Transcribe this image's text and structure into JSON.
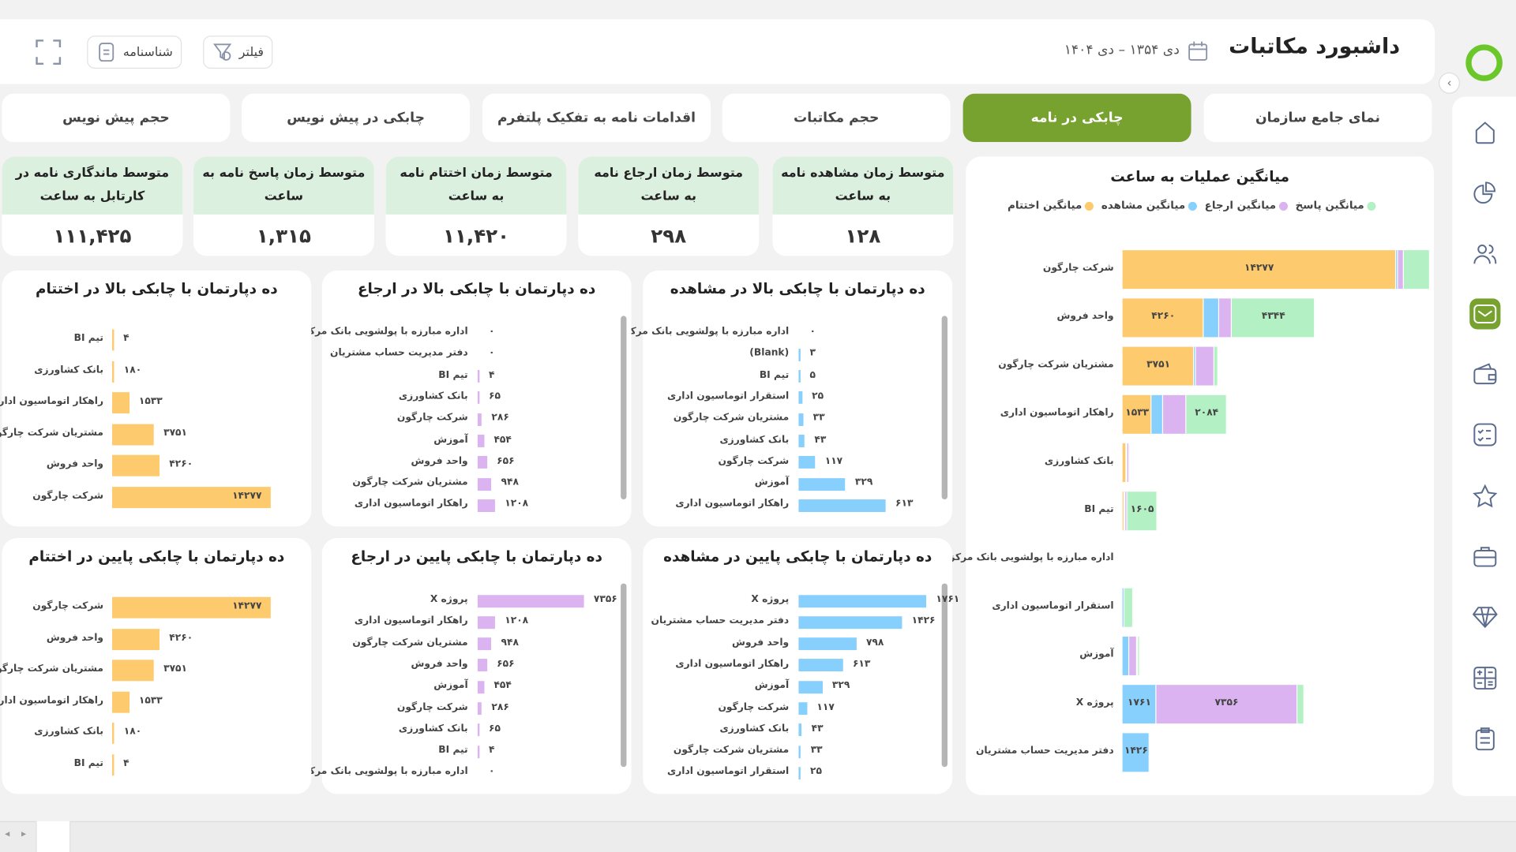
{
  "header": {
    "title": "داشبورد مکاتبات",
    "date_range": "دی ۱۳۵۴ – دی ۱۴۰۴",
    "filter_label": "فیلتر",
    "profile_label": "شناسنامه"
  },
  "tabs": [
    {
      "label": "نمای جامع سازمان",
      "active": false
    },
    {
      "label": "چابکی در نامه",
      "active": true
    },
    {
      "label": "حجم مکاتبات",
      "active": false
    },
    {
      "label": "اقدامات نامه به تفکیک پلتفرم",
      "active": false
    },
    {
      "label": "چابکی در پیش نویس",
      "active": false
    },
    {
      "label": "حجم پیش نویس",
      "active": false
    }
  ],
  "kpis": [
    {
      "title": "متوسط زمان مشاهده نامه به ساعت",
      "value": "۱۲۸"
    },
    {
      "title": "متوسط زمان ارجاع نامه به ساعت",
      "value": "۲۹۸"
    },
    {
      "title": "متوسط زمان اختتام نامه به ساعت",
      "value": "۱۱,۴۲۰"
    },
    {
      "title": "متوسط زمان پاسخ نامه به ساعت",
      "value": "۱,۳۱۵"
    },
    {
      "title": "متوسط ماندگاری نامه در کارتابل به ساعت",
      "value": "۱۱۱,۴۲۵"
    }
  ],
  "sidebar": {
    "icons": [
      "logo-ring-icon",
      "home-icon",
      "pie-chart-icon",
      "users-icon",
      "mail-icon",
      "wallet-icon",
      "checklist-icon",
      "star-icon",
      "briefcase-icon",
      "diamond-icon",
      "calculator-icon",
      "clipboard-icon"
    ],
    "active_index": 4
  },
  "colors": {
    "accent": "#78a22f",
    "kpi_header": "#dcf0df",
    "closing": "#fdca6e",
    "view": "#87d0fd",
    "referral": "#dab3f0",
    "response": "#b3f0c3"
  },
  "chart_data": [
    {
      "type": "bar",
      "orientation": "horizontal",
      "stacked": true,
      "title": "میانگین عملیات به ساعت",
      "legend_position": "top",
      "categories": [
        "شرکت چارگون",
        "واحد فروش",
        "مشتریان شرکت چارگون",
        "راهکار اتوماسیون اداری",
        "بانک کشاورزی",
        "تیم BI",
        "اداره مبارزه با پولشویی بانک مرکزی",
        "استقرار اتوماسیون اداری",
        "آموزش",
        "پروژه X",
        "دفتر مدیریت حساب مشتریان"
      ],
      "series": [
        {
          "name": "میانگین اختتام",
          "color": "#fdca6e",
          "values": [
            14277,
            4260,
            3751,
            1533,
            180,
            4,
            0,
            0,
            0,
            0,
            0
          ]
        },
        {
          "name": "میانگین مشاهده",
          "color": "#87d0fd",
          "values": [
            117,
            798,
            33,
            613,
            43,
            5,
            0,
            25,
            329,
            1761,
            1426
          ]
        },
        {
          "name": "میانگین ارجاع",
          "color": "#dab3f0",
          "values": [
            286,
            656,
            948,
            1208,
            65,
            4,
            0,
            0,
            454,
            7356,
            0
          ]
        },
        {
          "name": "میانگین پاسخ",
          "color": "#b3f0c3",
          "values": [
            1365,
            4344,
            250,
            2084,
            0,
            1605,
            0,
            480,
            130,
            400,
            0
          ]
        }
      ]
    },
    {
      "type": "bar",
      "orientation": "horizontal",
      "title": "ده دپارتمان با چابکی بالا در مشاهده",
      "color": "#87d0fd",
      "categories": [
        "اداره مبارزه با پولشویی بانک مرکزی",
        "(Blank)",
        "تیم BI",
        "استقرار اتوماسیون اداری",
        "مشتریان شرکت چارگون",
        "بانک کشاورزی",
        "شرکت چارگون",
        "آموزش",
        "راهکار اتوماسیون اداری"
      ],
      "values": [
        0,
        3,
        5,
        25,
        33,
        43,
        117,
        329,
        613
      ]
    },
    {
      "type": "bar",
      "orientation": "horizontal",
      "title": "ده دپارتمان با چابکی بالا در ارجاع",
      "color": "#dab3f0",
      "categories": [
        "اداره مبارزه با پولشویی بانک مرکزی",
        "دفتر مدیریت حساب مشتریان",
        "تیم BI",
        "بانک کشاورزی",
        "شرکت چارگون",
        "آموزش",
        "واحد فروش",
        "مشتریان شرکت چارگون",
        "راهکار اتوماسیون اداری"
      ],
      "values": [
        0,
        0,
        4,
        65,
        286,
        454,
        656,
        948,
        1208
      ]
    },
    {
      "type": "bar",
      "orientation": "horizontal",
      "title": "ده دپارتمان با چابکی بالا در اختتام",
      "color": "#fdca6e",
      "categories": [
        "تیم BI",
        "بانک کشاورزی",
        "راهکار اتوماسیون اداری",
        "مشتریان شرکت چارگون",
        "واحد فروش",
        "شرکت چارگون"
      ],
      "values": [
        4,
        180,
        1533,
        3751,
        4260,
        14277
      ]
    },
    {
      "type": "bar",
      "orientation": "horizontal",
      "title": "ده دپارتمان با چابکی پایین در مشاهده",
      "color": "#87d0fd",
      "categories": [
        "پروژه X",
        "دفتر مدیریت حساب مشتریان",
        "واحد فروش",
        "راهکار اتوماسیون اداری",
        "آموزش",
        "شرکت چارگون",
        "بانک کشاورزی",
        "مشتریان شرکت چارگون",
        "استقرار اتوماسیون اداری"
      ],
      "values": [
        1761,
        1426,
        798,
        613,
        329,
        117,
        43,
        33,
        25
      ]
    },
    {
      "type": "bar",
      "orientation": "horizontal",
      "title": "ده دپارتمان با چابکی پایین در ارجاع",
      "color": "#dab3f0",
      "categories": [
        "پروژه X",
        "راهکار اتوماسیون اداری",
        "مشتریان شرکت چارگون",
        "واحد فروش",
        "آموزش",
        "شرکت چارگون",
        "بانک کشاورزی",
        "تیم BI",
        "اداره مبارزه با پولشویی بانک مرکزی"
      ],
      "values": [
        7356,
        1208,
        948,
        656,
        454,
        286,
        65,
        4,
        0
      ]
    },
    {
      "type": "bar",
      "orientation": "horizontal",
      "title": "ده دپارتمان با چابکی پایین در اختتام",
      "color": "#fdca6e",
      "categories": [
        "شرکت چارگون",
        "واحد فروش",
        "مشتریان شرکت چارگون",
        "راهکار اتوماسیون اداری",
        "بانک کشاورزی",
        "تیم BI"
      ],
      "values": [
        14277,
        4260,
        3751,
        1533,
        180,
        4
      ]
    }
  ]
}
